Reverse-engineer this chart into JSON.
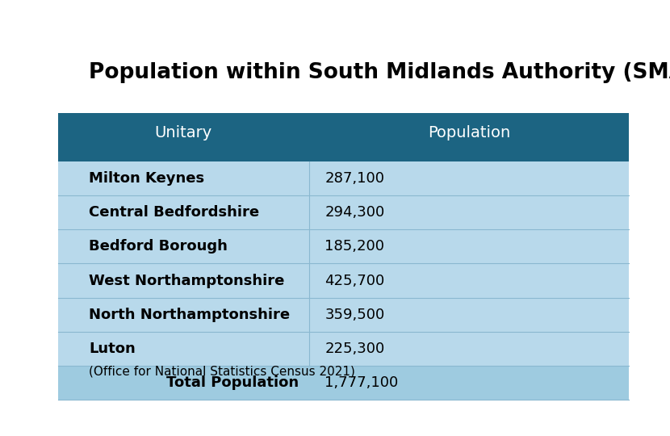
{
  "title": "Population within South Midlands Authority (SMA)",
  "title_fontsize": 19,
  "header": [
    "Unitary",
    "Population"
  ],
  "rows": [
    [
      "Milton Keynes",
      "287,100"
    ],
    [
      "Central Bedfordshire",
      "294,300"
    ],
    [
      "Bedford Borough",
      "185,200"
    ],
    [
      "West Northamptonshire",
      "425,700"
    ],
    [
      "North Northamptonshire",
      "359,500"
    ],
    [
      "Luton",
      "225,300"
    ]
  ],
  "total_label": "Total Population",
  "total_value": "1,777,100",
  "source": "(Office for National Statistics Census 2021)",
  "header_bg": "#1c6482",
  "header_fg": "#ffffff",
  "row_bg": "#b8d9eb",
  "row_sep": "#8ab8d0",
  "total_bg": "#9ecbe0",
  "bg_color": "#ffffff",
  "col_split": 0.44
}
